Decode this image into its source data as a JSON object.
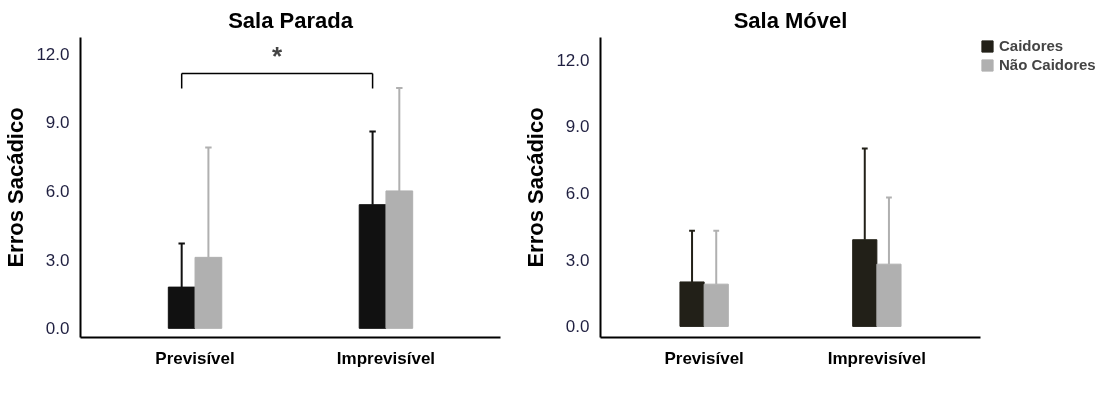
{
  "chart_data": [
    {
      "type": "bar",
      "title": "Sala Parada",
      "ylabel": "Erros Sacádico",
      "categories": [
        "Previsível",
        "Imprevisível"
      ],
      "series": [
        {
          "color": "#111111",
          "values": [
            1.8,
            5.4
          ],
          "errors": [
            [
              1.8,
              3.7
            ],
            [
              5.4,
              8.6
            ]
          ]
        },
        {
          "color": "#b0b0b0",
          "values": [
            3.1,
            6.0
          ],
          "errors": [
            [
              3.1,
              7.9
            ],
            [
              6.0,
              10.5
            ]
          ]
        }
      ],
      "ylim": [
        -0.4,
        12.7
      ],
      "yticks": [
        {
          "value": 0,
          "label": "0.0"
        },
        {
          "value": 3,
          "label": "3.0"
        },
        {
          "value": 6,
          "label": "6.0"
        },
        {
          "value": 9,
          "label": "9.0"
        },
        {
          "value": 12,
          "label": "12.0"
        }
      ],
      "annotations": [
        "*"
      ],
      "grid": false,
      "legend": false
    },
    {
      "type": "bar",
      "title": "Sala Móvel",
      "ylabel": "Erros Sacádico",
      "categories": [
        "Previsível",
        "Imprevisível"
      ],
      "series": [
        {
          "name": "Caidores",
          "color": "#222018",
          "values": [
            2.0,
            3.9
          ],
          "errors": [
            [
              2.0,
              4.3
            ],
            [
              3.9,
              8.0
            ]
          ]
        },
        {
          "name": "Não Caidores",
          "color": "#b0b0b0",
          "values": [
            1.9,
            2.8
          ],
          "errors": [
            [
              1.9,
              4.3
            ],
            [
              2.8,
              5.8
            ]
          ]
        }
      ],
      "ylim": [
        -0.5,
        13.0
      ],
      "yticks": [
        {
          "value": 0,
          "label": "0.0"
        },
        {
          "value": 3,
          "label": "3.0"
        },
        {
          "value": 6,
          "label": "6.0"
        },
        {
          "value": 9,
          "label": "9.0"
        },
        {
          "value": 12,
          "label": "12.0"
        }
      ],
      "grid": false,
      "legend": "top right"
    }
  ]
}
